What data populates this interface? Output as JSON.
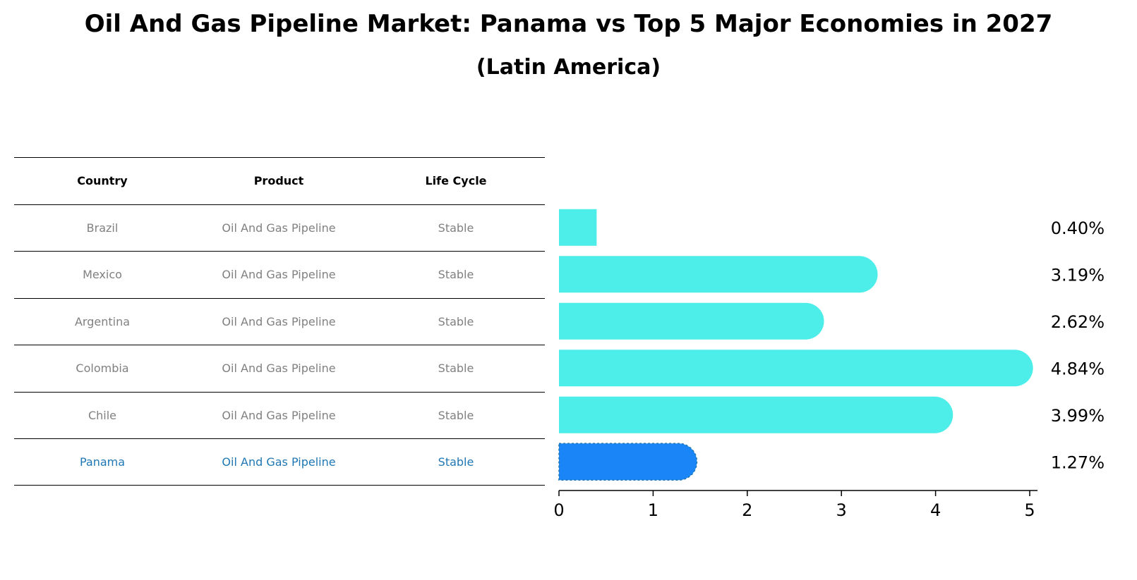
{
  "title": "Oil And Gas Pipeline Market: Panama vs Top 5 Major Economies in 2027",
  "subtitle": "(Latin America)",
  "table": {
    "headers": [
      "Country",
      "Product",
      "Life Cycle"
    ],
    "rows": [
      {
        "country": "Brazil",
        "product": "Oil And Gas Pipeline",
        "life_cycle": "Stable"
      },
      {
        "country": "Mexico",
        "product": "Oil And Gas Pipeline",
        "life_cycle": "Stable"
      },
      {
        "country": "Argentina",
        "product": "Oil And Gas Pipeline",
        "life_cycle": "Stable"
      },
      {
        "country": "Colombia",
        "product": "Oil And Gas Pipeline",
        "life_cycle": "Stable"
      },
      {
        "country": "Chile",
        "product": "Oil And Gas Pipeline",
        "life_cycle": "Stable"
      },
      {
        "country": "Panama",
        "product": "Oil And Gas Pipeline",
        "life_cycle": "Stable"
      }
    ]
  },
  "chart_data": {
    "type": "bar",
    "orientation": "horizontal",
    "categories": [
      "Brazil",
      "Mexico",
      "Argentina",
      "Colombia",
      "Chile",
      "Panama"
    ],
    "values": [
      0.4,
      3.19,
      2.62,
      4.84,
      3.99,
      1.27
    ],
    "value_labels": [
      "0.40%",
      "3.19%",
      "2.62%",
      "4.84%",
      "3.99%",
      "1.27%"
    ],
    "highlight": "Panama",
    "xlim": [
      0,
      5.1
    ],
    "xticks": [
      0,
      1,
      2,
      3,
      4,
      5
    ],
    "xlabel": "",
    "ylabel": "",
    "colors": {
      "default": "#4deeea",
      "highlight": "#1a85f6"
    }
  }
}
